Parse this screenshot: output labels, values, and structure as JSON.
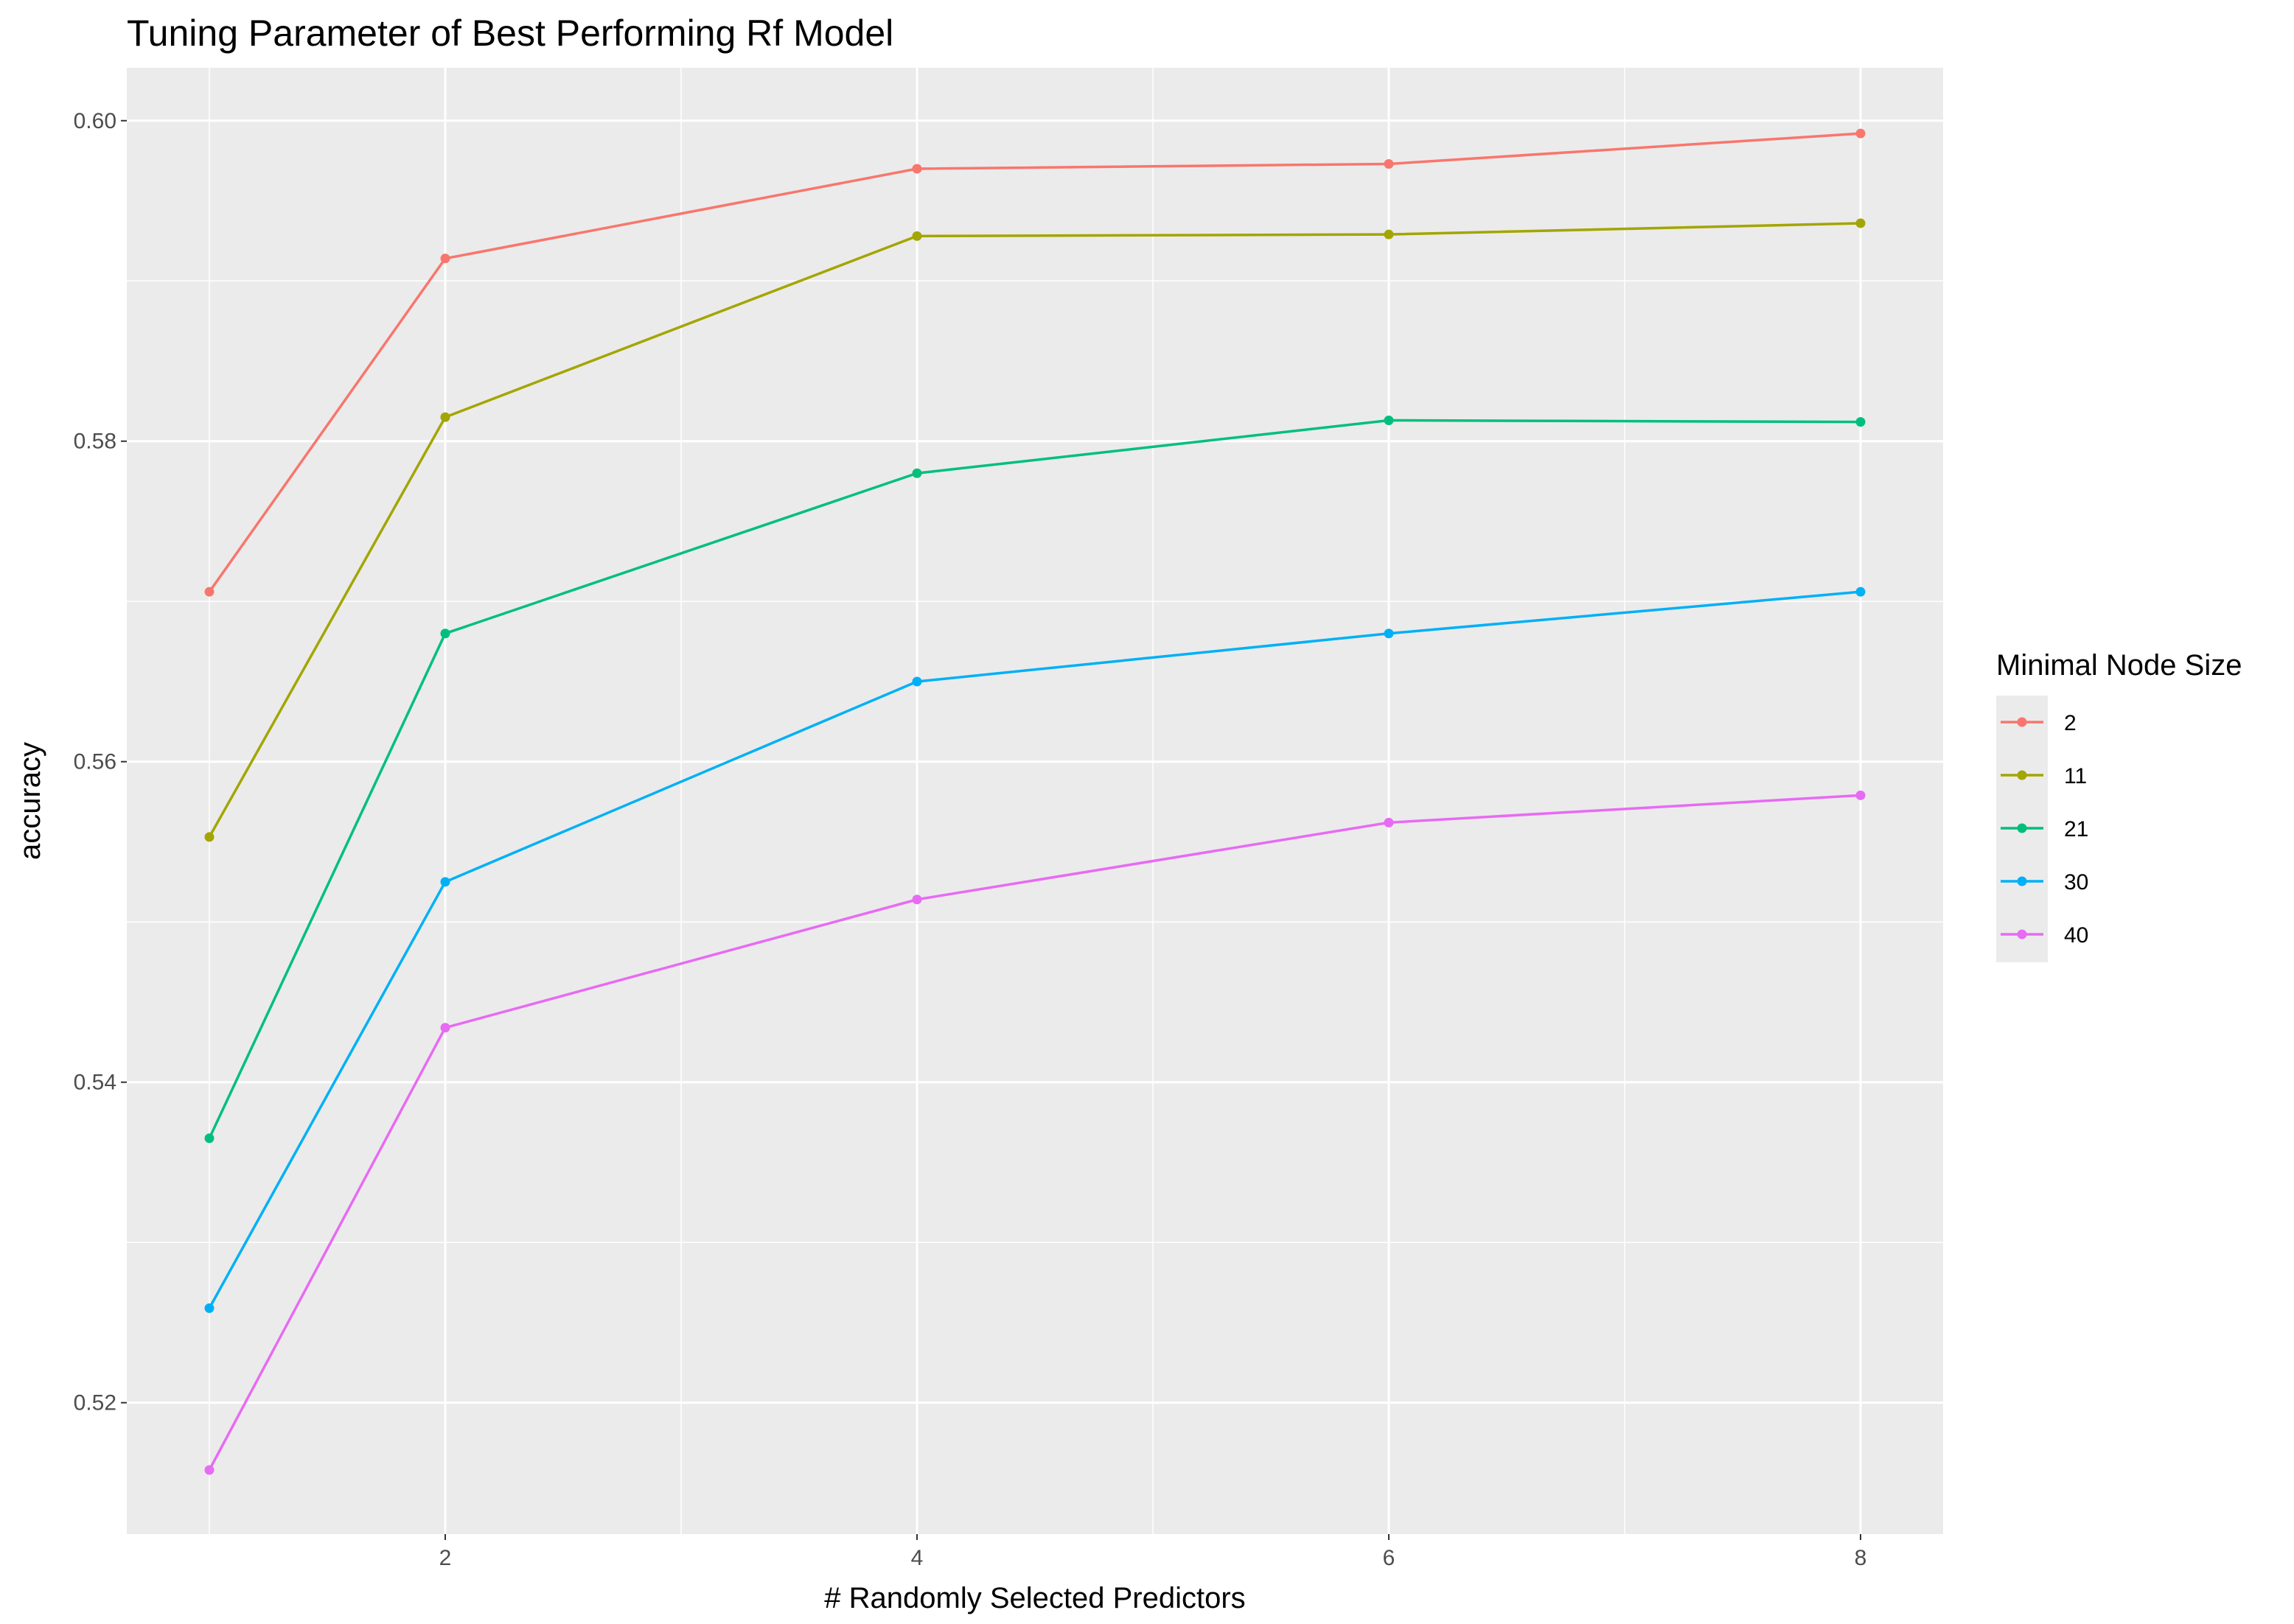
{
  "chart_data": {
    "type": "line",
    "title": "Tuning Parameter of Best Performing Rf Model",
    "xlabel": "# Randomly Selected Predictors",
    "ylabel": "accuracy",
    "x": [
      1,
      2,
      4,
      6,
      8
    ],
    "xlim": [
      0.65,
      8.35
    ],
    "ylim": [
      0.5118,
      0.6033
    ],
    "x_ticks": [
      2,
      4,
      6,
      8
    ],
    "x_tick_labels": [
      "2",
      "4",
      "6",
      "8"
    ],
    "y_ticks": [
      0.52,
      0.54,
      0.56,
      0.58,
      0.6
    ],
    "y_tick_labels": [
      "0.52",
      "0.54",
      "0.56",
      "0.58",
      "0.60"
    ],
    "grid": true,
    "legend": {
      "title": "Minimal Node Size",
      "position": "right"
    },
    "series": [
      {
        "name": "2",
        "color": "#F8766D",
        "values": [
          0.5706,
          0.5914,
          0.597,
          0.5973,
          0.5992
        ]
      },
      {
        "name": "11",
        "color": "#A3A500",
        "values": [
          0.5553,
          0.5815,
          0.5928,
          0.5929,
          0.5936
        ]
      },
      {
        "name": "21",
        "color": "#00BF7D",
        "values": [
          0.5365,
          0.568,
          0.578,
          0.5813,
          0.5812
        ]
      },
      {
        "name": "30",
        "color": "#00B0F6",
        "values": [
          0.5259,
          0.5525,
          0.565,
          0.568,
          0.5706
        ]
      },
      {
        "name": "40",
        "color": "#E76BF3",
        "values": [
          0.5158,
          0.5434,
          0.5514,
          0.5562,
          0.5579
        ]
      }
    ]
  }
}
